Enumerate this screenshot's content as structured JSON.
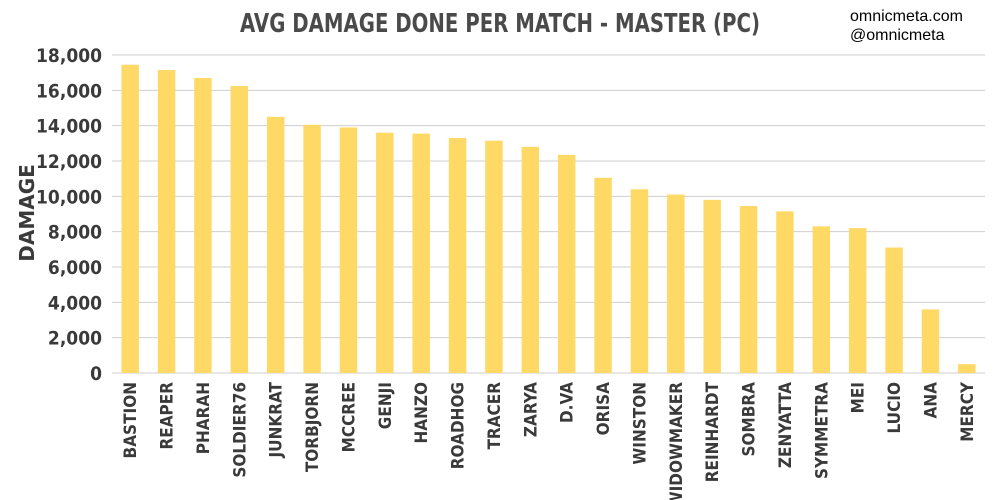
{
  "credits": {
    "site": "omnicmeta.com",
    "handle": "@omnicmeta"
  },
  "chart_data": {
    "type": "bar",
    "title": "AVG DAMAGE DONE PER MATCH - MASTER (PC)",
    "xlabel": "",
    "ylabel": "DAMAGE",
    "ylim": [
      0,
      18000
    ],
    "yticks": [
      0,
      2000,
      4000,
      6000,
      8000,
      10000,
      12000,
      14000,
      16000,
      18000
    ],
    "ytick_labels": [
      "0",
      "2,000",
      "4,000",
      "6,000",
      "8,000",
      "10,000",
      "12,000",
      "14,000",
      "16,000",
      "18,000"
    ],
    "grid": true,
    "bar_color": "#ffd966",
    "categories": [
      "BASTION",
      "REAPER",
      "PHARAH",
      "SOLDIER76",
      "JUNKRAT",
      "TORBJORN",
      "MCCREE",
      "GENJI",
      "HANZO",
      "ROADHOG",
      "TRACER",
      "ZARYA",
      "D.VA",
      "ORISA",
      "WINSTON",
      "WIDOWMAKER",
      "REINHARDT",
      "SOMBRA",
      "ZENYATTA",
      "SYMMETRA",
      "MEI",
      "LUCIO",
      "ANA",
      "MERCY"
    ],
    "values": [
      17450,
      17150,
      16700,
      16250,
      14500,
      14050,
      13900,
      13600,
      13550,
      13300,
      13150,
      12800,
      12350,
      11050,
      10400,
      10100,
      9800,
      9450,
      9150,
      8300,
      8200,
      7100,
      3600,
      500
    ]
  }
}
